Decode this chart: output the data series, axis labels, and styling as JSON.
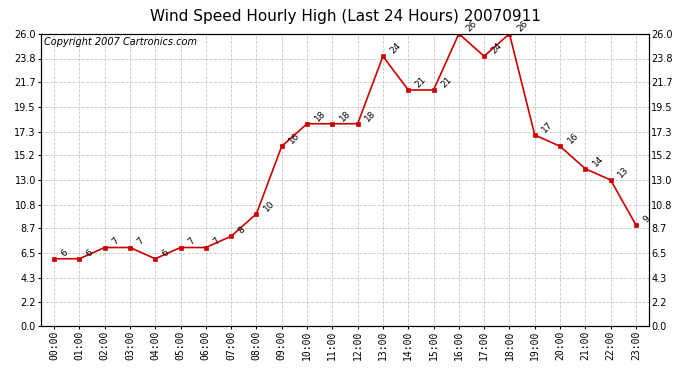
{
  "title": "Wind Speed Hourly High (Last 24 Hours) 20070911",
  "copyright": "Copyright 2007 Cartronics.com",
  "hours": [
    "00:00",
    "01:00",
    "02:00",
    "03:00",
    "04:00",
    "05:00",
    "06:00",
    "07:00",
    "08:00",
    "09:00",
    "10:00",
    "11:00",
    "12:00",
    "13:00",
    "14:00",
    "15:00",
    "16:00",
    "17:00",
    "18:00",
    "19:00",
    "20:00",
    "21:00",
    "22:00",
    "23:00"
  ],
  "values": [
    6,
    6,
    7,
    7,
    6,
    7,
    7,
    8,
    10,
    16,
    18,
    18,
    18,
    24,
    21,
    21,
    26,
    24,
    26,
    17,
    16,
    14,
    13,
    9
  ],
  "line_color": "#cc0000",
  "marker_style": "s",
  "marker_size": 3,
  "grid_color": "#c8c8c8",
  "bg_color": "#ffffff",
  "ylim": [
    0,
    26.0
  ],
  "yticks": [
    0.0,
    2.2,
    4.3,
    6.5,
    8.7,
    10.8,
    13.0,
    15.2,
    17.3,
    19.5,
    21.7,
    23.8,
    26.0
  ],
  "title_fontsize": 11,
  "copyright_fontsize": 7,
  "label_fontsize": 7,
  "annotation_fontsize": 6.5
}
